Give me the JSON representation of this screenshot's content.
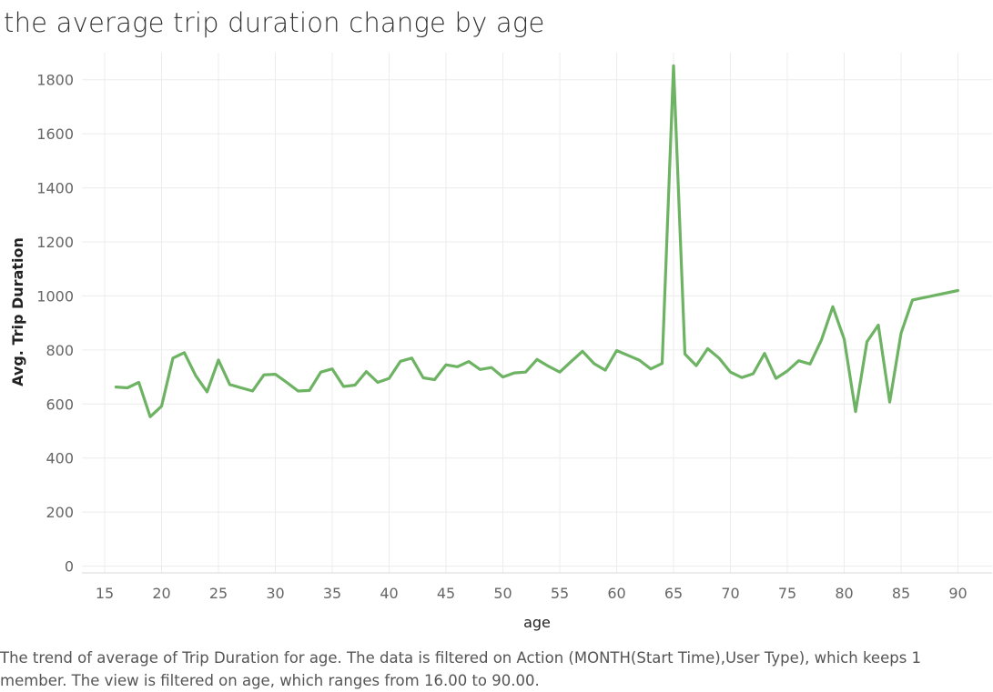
{
  "chart_data": {
    "type": "line",
    "title": "the average trip duration change by age",
    "xlabel": "age",
    "ylabel": "Avg. Trip Duration",
    "xlim": [
      13,
      93
    ],
    "ylim": [
      -25,
      1900
    ],
    "x_ticks": [
      15,
      20,
      25,
      30,
      35,
      40,
      45,
      50,
      55,
      60,
      65,
      70,
      75,
      80,
      85,
      90
    ],
    "y_ticks": [
      0,
      200,
      400,
      600,
      800,
      1000,
      1200,
      1400,
      1600,
      1800
    ],
    "grid": true,
    "line_color": "#6db363",
    "series": [
      {
        "x": [
          16,
          17,
          18,
          19,
          20,
          21,
          22,
          23,
          24,
          25,
          26,
          27,
          28,
          29,
          30,
          31,
          32,
          33,
          34,
          35,
          36,
          37,
          38,
          39,
          40,
          41,
          42,
          43,
          44,
          45,
          46,
          47,
          48,
          49,
          50,
          51,
          52,
          53,
          54,
          55,
          56,
          57,
          58,
          59,
          60,
          61,
          62,
          63,
          64,
          65,
          66,
          67,
          68,
          69,
          70,
          71,
          72,
          73,
          74,
          75,
          76,
          77,
          78,
          79,
          80,
          81,
          82,
          83,
          84,
          85,
          86,
          90
        ],
        "values": [
          663,
          660,
          680,
          553,
          592,
          770,
          790,
          705,
          645,
          763,
          672,
          660,
          648,
          708,
          710,
          680,
          648,
          650,
          718,
          730,
          665,
          670,
          720,
          680,
          695,
          758,
          770,
          697,
          690,
          745,
          738,
          757,
          728,
          735,
          700,
          715,
          718,
          765,
          740,
          718,
          757,
          795,
          750,
          725,
          798,
          780,
          762,
          730,
          750,
          1852,
          785,
          742,
          805,
          770,
          718,
          698,
          712,
          787,
          695,
          722,
          760,
          748,
          837,
          960,
          840,
          572,
          830,
          892,
          607,
          862,
          985,
          1020
        ]
      }
    ]
  },
  "footer": {
    "caption": "The trend of average of Trip Duration for age. The data is filtered on Action (MONTH(Start Time),User Type), which keeps 1 member. The view is filtered on age, which ranges from 16.00 to 90.00."
  }
}
